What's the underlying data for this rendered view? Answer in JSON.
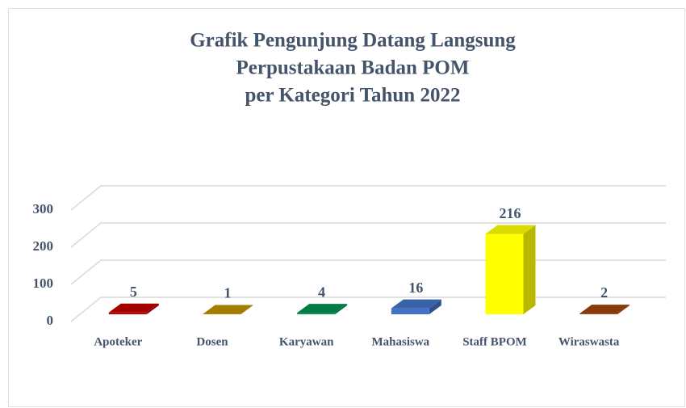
{
  "chart_data": {
    "type": "bar3d",
    "title": [
      "Grafik Pengunjung Datang Langsung",
      "Perpustakaan Badan POM",
      "per Kategori Tahun 2022"
    ],
    "categories": [
      "Apoteker",
      "Dosen",
      "Karyawan",
      "Mahasiswa",
      "Staff BPOM",
      "Wiraswasta"
    ],
    "values": [
      5,
      1,
      4,
      16,
      216,
      2
    ],
    "colors": [
      "#c00000",
      "#bf9000",
      "#00904f",
      "#4472c4",
      "#ffff00",
      "#a0420c"
    ],
    "ylim": [
      0,
      300
    ],
    "yticks": [
      0,
      100,
      200,
      300
    ],
    "grid": true
  }
}
